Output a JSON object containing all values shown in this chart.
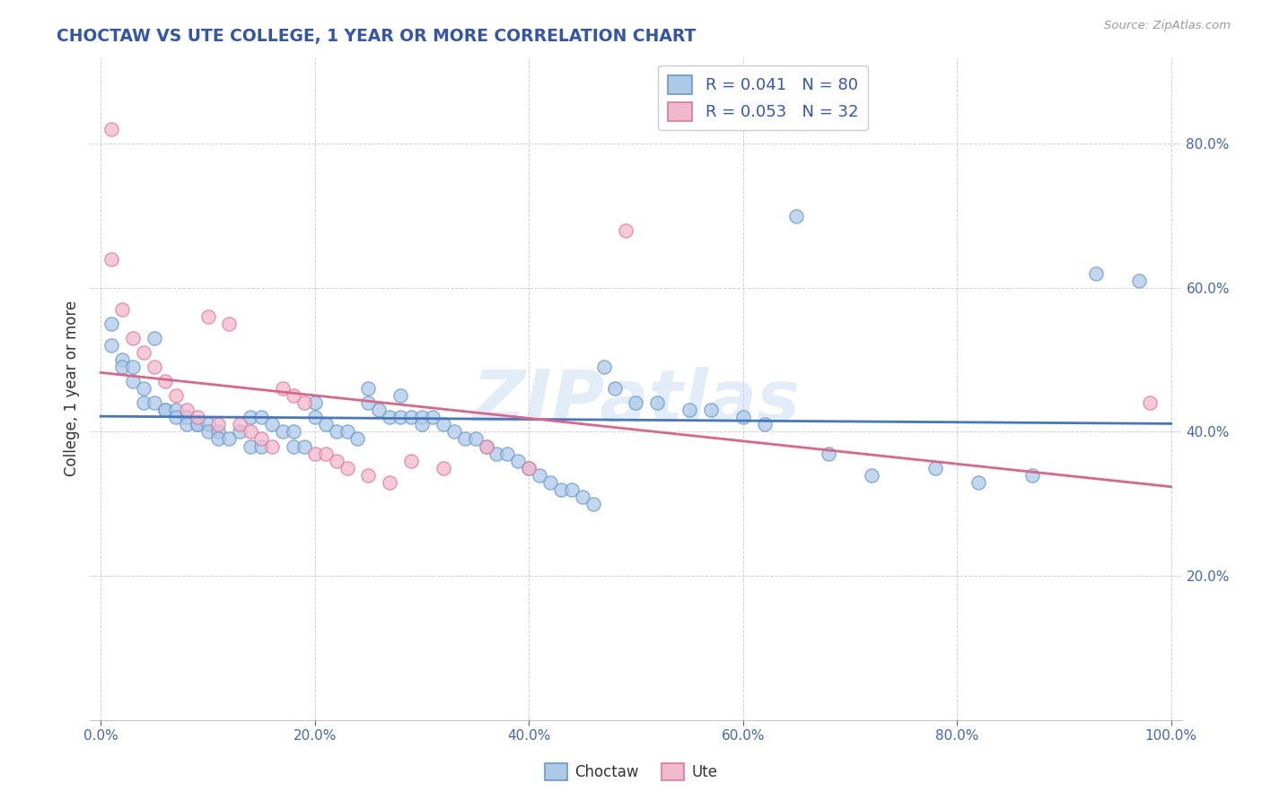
{
  "title": "CHOCTAW VS UTE COLLEGE, 1 YEAR OR MORE CORRELATION CHART",
  "source_text": "Source: ZipAtlas.com",
  "ylabel": "College, 1 year or more",
  "xlim": [
    -0.01,
    1.01
  ],
  "ylim": [
    0.0,
    0.92
  ],
  "xtick_vals": [
    0.0,
    0.2,
    0.4,
    0.6,
    0.8,
    1.0
  ],
  "ytick_vals": [
    0.2,
    0.4,
    0.6,
    0.8
  ],
  "background_color": "#ffffff",
  "grid_color": "#cccccc",
  "choctaw_color": "#aec9e8",
  "choctaw_edge": "#6699cc",
  "ute_color": "#f2b8cc",
  "ute_edge": "#e07898",
  "choctaw_line_color": "#4477bb",
  "ute_line_color": "#dd6688",
  "choctaw_R": 0.041,
  "choctaw_N": 80,
  "ute_R": 0.053,
  "ute_N": 32,
  "legend_label_choctaw": "Choctaw",
  "legend_label_ute": "Ute",
  "watermark": "ZIPatlas",
  "choctaw_x": [
    0.01,
    0.01,
    0.02,
    0.02,
    0.03,
    0.03,
    0.04,
    0.04,
    0.05,
    0.05,
    0.06,
    0.06,
    0.07,
    0.07,
    0.08,
    0.08,
    0.09,
    0.09,
    0.1,
    0.1,
    0.11,
    0.11,
    0.12,
    0.13,
    0.14,
    0.14,
    0.15,
    0.15,
    0.16,
    0.17,
    0.18,
    0.18,
    0.19,
    0.2,
    0.2,
    0.21,
    0.22,
    0.23,
    0.24,
    0.25,
    0.25,
    0.26,
    0.27,
    0.28,
    0.28,
    0.29,
    0.3,
    0.3,
    0.31,
    0.32,
    0.33,
    0.34,
    0.35,
    0.36,
    0.37,
    0.38,
    0.39,
    0.4,
    0.41,
    0.42,
    0.43,
    0.44,
    0.45,
    0.46,
    0.47,
    0.48,
    0.5,
    0.52,
    0.55,
    0.57,
    0.6,
    0.62,
    0.65,
    0.68,
    0.72,
    0.78,
    0.82,
    0.87,
    0.93,
    0.97
  ],
  "choctaw_y": [
    0.55,
    0.52,
    0.5,
    0.49,
    0.49,
    0.47,
    0.46,
    0.44,
    0.53,
    0.44,
    0.43,
    0.43,
    0.43,
    0.42,
    0.42,
    0.41,
    0.41,
    0.41,
    0.41,
    0.4,
    0.4,
    0.39,
    0.39,
    0.4,
    0.42,
    0.38,
    0.42,
    0.38,
    0.41,
    0.4,
    0.38,
    0.4,
    0.38,
    0.44,
    0.42,
    0.41,
    0.4,
    0.4,
    0.39,
    0.46,
    0.44,
    0.43,
    0.42,
    0.45,
    0.42,
    0.42,
    0.42,
    0.41,
    0.42,
    0.41,
    0.4,
    0.39,
    0.39,
    0.38,
    0.37,
    0.37,
    0.36,
    0.35,
    0.34,
    0.33,
    0.32,
    0.32,
    0.31,
    0.3,
    0.49,
    0.46,
    0.44,
    0.44,
    0.43,
    0.43,
    0.42,
    0.41,
    0.7,
    0.37,
    0.34,
    0.35,
    0.33,
    0.34,
    0.62,
    0.61
  ],
  "ute_x": [
    0.01,
    0.01,
    0.02,
    0.03,
    0.04,
    0.05,
    0.06,
    0.07,
    0.08,
    0.09,
    0.1,
    0.11,
    0.12,
    0.13,
    0.14,
    0.15,
    0.16,
    0.17,
    0.18,
    0.19,
    0.2,
    0.21,
    0.22,
    0.23,
    0.25,
    0.27,
    0.29,
    0.32,
    0.36,
    0.4,
    0.49,
    0.98
  ],
  "ute_y": [
    0.82,
    0.64,
    0.57,
    0.53,
    0.51,
    0.49,
    0.47,
    0.45,
    0.43,
    0.42,
    0.56,
    0.41,
    0.55,
    0.41,
    0.4,
    0.39,
    0.38,
    0.46,
    0.45,
    0.44,
    0.37,
    0.37,
    0.36,
    0.35,
    0.34,
    0.33,
    0.36,
    0.35,
    0.38,
    0.35,
    0.68,
    0.44
  ]
}
